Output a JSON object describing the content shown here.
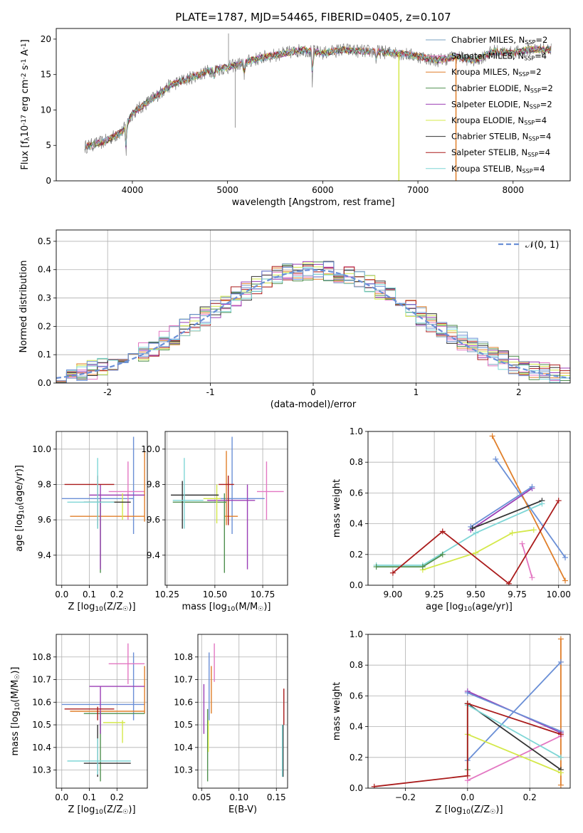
{
  "figure": {
    "title": "PLATE=1787, MJD=54465, FIBERID=0405, z=0.107"
  },
  "models": [
    {
      "label": "Chabrier MILES, N$_{SSP}$=2",
      "base": "Chabrier MILES, N",
      "nssp": "=2",
      "color": "#7aa0c0"
    },
    {
      "label": "Salpeter MILES, N$_{SSP}$=4",
      "base": "Salpeter MILES, N",
      "nssp": "=4",
      "color": "#e377c2"
    },
    {
      "label": "Kroupa MILES, N$_{SSP}$=2",
      "base": "Kroupa MILES, N",
      "nssp": "=2",
      "color": "#e07f2a"
    },
    {
      "label": "Chabrier ELODIE, N$_{SSP}$=2",
      "base": "Chabrier ELODIE, N",
      "nssp": "=2",
      "color": "#4f8f4f"
    },
    {
      "label": "Salpeter ELODIE, N$_{SSP}$=2",
      "base": "Salpeter ELODIE, N",
      "nssp": "=2",
      "color": "#9b3fb5"
    },
    {
      "label": "Kroupa ELODIE, N$_{SSP}$=4",
      "base": "Kroupa ELODIE, N",
      "nssp": "=4",
      "color": "#d4e84a"
    },
    {
      "label": "Chabrier STELIB, N$_{SSP}$=4",
      "base": "Chabrier STELIB, N",
      "nssp": "=4",
      "color": "#333333"
    },
    {
      "label": "Salpeter STELIB, N$_{SSP}$=4",
      "base": "Salpeter STELIB, N",
      "nssp": "=4",
      "color": "#aa1b1b"
    },
    {
      "label": "Kroupa STELIB, N$_{SSP}$=4",
      "base": "Kroupa STELIB, N",
      "nssp": "=4",
      "color": "#7fd6d6"
    }
  ],
  "extra_colors": {
    "blue": "#6a8fd6",
    "cyan": "#7fd6d6"
  },
  "chart_data": [
    {
      "id": "spectrum",
      "type": "line",
      "xlabel": "wavelength [Angstrom, rest frame]",
      "ylabel": "Flux [f$_\\lambda$10$^{-17}$ erg cm$^{-2}$ s$^{-1}$ A$^{-1}$]",
      "xlim": [
        3200,
        8600
      ],
      "ylim": [
        0,
        21.5
      ],
      "xticks": [
        4000,
        5000,
        6000,
        7000,
        8000
      ],
      "yticks": [
        0,
        5,
        10,
        15,
        20
      ],
      "continuum": [
        [
          3500,
          4.8
        ],
        [
          3700,
          5.5
        ],
        [
          3900,
          7.0
        ],
        [
          4000,
          9.5
        ],
        [
          4200,
          11.5
        ],
        [
          4400,
          13.5
        ],
        [
          4600,
          14.5
        ],
        [
          4800,
          15.5
        ],
        [
          5000,
          16.0
        ],
        [
          5200,
          16.8
        ],
        [
          5400,
          17.5
        ],
        [
          5600,
          18.0
        ],
        [
          5800,
          18.5
        ],
        [
          6000,
          18.0
        ],
        [
          6200,
          18.5
        ],
        [
          6400,
          18.3
        ],
        [
          6600,
          18.2
        ],
        [
          6800,
          18.0
        ],
        [
          7000,
          17.6
        ],
        [
          7200,
          17.0
        ],
        [
          7400,
          17.5
        ],
        [
          7600,
          17.0
        ],
        [
          7800,
          18.3
        ],
        [
          8000,
          18.0
        ],
        [
          8200,
          18.6
        ],
        [
          8400,
          18.5
        ]
      ],
      "features": [
        {
          "x": 3933,
          "depth": -5.0
        },
        {
          "x": 4861,
          "depth": -2.0
        },
        {
          "x": 5175,
          "depth": -3.0
        },
        {
          "x": 5892,
          "depth": -6.0
        },
        {
          "x": 6563,
          "depth": -1.8
        },
        {
          "x": 6800,
          "depth": -18.0
        },
        {
          "x": 7400,
          "depth": -18.0
        }
      ],
      "spikes": [
        {
          "x": 5010,
          "top": 20.8
        },
        {
          "x": 5080,
          "top": 7.5
        }
      ]
    },
    {
      "id": "residuals",
      "type": "histogram",
      "xlabel": "(data-model)/error",
      "ylabel": "Normed distribution",
      "xlim": [
        -2.5,
        2.5
      ],
      "ylim": [
        0,
        0.54
      ],
      "xticks": [
        -2,
        -1,
        0,
        1,
        2
      ],
      "yticks": [
        0.0,
        0.1,
        0.2,
        0.3,
        0.4,
        0.5
      ],
      "legend": "$\\mathcal{N}(0,1)$",
      "legend_text": "𝒩(0, 1)",
      "bin_width": 0.1
    },
    {
      "id": "age_vs_Z",
      "type": "scatter",
      "xlabel": "Z [log$_{10}$(Z/Z$_\\odot$)]",
      "ylabel": "age  [log$_{10}$(age/yr)]",
      "xlim": [
        -0.02,
        0.31
      ],
      "ylim": [
        9.23,
        10.1
      ],
      "xticks": [
        0.0,
        0.1,
        0.2
      ],
      "yticks": [
        9.4,
        9.6,
        9.8,
        10.0
      ],
      "points": [
        {
          "color": "#6a8fd6",
          "x": 0.0,
          "xerr": [
            0.0,
            0.26
          ],
          "y": 9.72,
          "yerr": [
            9.72,
            9.72
          ]
        },
        {
          "color": "#6a8fd6",
          "x": 0.26,
          "xerr": [
            0.26,
            0.26
          ],
          "y": 9.75,
          "yerr": [
            9.52,
            10.07
          ]
        },
        {
          "color": "#e377c2",
          "x": 0.24,
          "xerr": [
            0.17,
            0.3
          ],
          "y": 9.76,
          "yerr": [
            9.6,
            9.93
          ]
        },
        {
          "color": "#e07f2a",
          "x": 0.3,
          "xerr": [
            0.03,
            0.3
          ],
          "y": 9.62,
          "yerr": [
            9.59,
            9.99
          ]
        },
        {
          "color": "#4f8f4f",
          "x": 0.14,
          "xerr": [
            0.08,
            0.16
          ],
          "y": 9.7,
          "yerr": [
            9.3,
            9.71
          ]
        },
        {
          "color": "#9b3fb5",
          "x": 0.14,
          "xerr": [
            0.1,
            0.3
          ],
          "y": 9.74,
          "yerr": [
            9.32,
            9.8
          ]
        },
        {
          "color": "#d4e84a",
          "x": 0.22,
          "xerr": [
            0.15,
            0.23
          ],
          "y": 9.7,
          "yerr": [
            9.6,
            9.75
          ]
        },
        {
          "color": "#333333",
          "x": 0.13,
          "xerr": [
            0.08,
            0.25
          ],
          "y": 9.7,
          "yerr": [
            9.55,
            9.85
          ]
        },
        {
          "color": "#aa1b1b",
          "x": 0.13,
          "xerr": [
            0.01,
            0.19
          ],
          "y": 9.8,
          "yerr": [
            9.57,
            9.85
          ]
        },
        {
          "color": "#7fd6d6",
          "x": 0.13,
          "xerr": [
            0.02,
            0.19
          ],
          "y": 9.7,
          "yerr": [
            9.55,
            9.95
          ]
        }
      ]
    },
    {
      "id": "age_vs_mass",
      "type": "scatter",
      "xlabel": "mass [log$_{10}$(M/M$_\\odot$)]",
      "ylabel": "",
      "xlim": [
        10.24,
        10.88
      ],
      "ylim": [
        9.23,
        10.1
      ],
      "xticks": [
        10.25,
        10.5,
        10.75
      ],
      "yticks": [
        9.4,
        9.6,
        9.8,
        10.0
      ],
      "points": [
        {
          "color": "#6a8fd6",
          "x": 10.59,
          "xerr": [
            10.52,
            10.76
          ],
          "y": 9.72,
          "yerr": [
            9.52,
            10.07
          ]
        },
        {
          "color": "#e377c2",
          "x": 10.77,
          "xerr": [
            10.72,
            10.86
          ],
          "y": 9.76,
          "yerr": [
            9.6,
            9.93
          ]
        },
        {
          "color": "#e07f2a",
          "x": 10.56,
          "xerr": [
            10.55,
            10.62
          ],
          "y": 9.62,
          "yerr": [
            9.57,
            9.99
          ]
        },
        {
          "color": "#4f8f4f",
          "x": 10.55,
          "xerr": [
            10.28,
            10.56
          ],
          "y": 9.7,
          "yerr": [
            9.3,
            9.75
          ]
        },
        {
          "color": "#9b3fb5",
          "x": 10.67,
          "xerr": [
            10.46,
            10.71
          ],
          "y": 9.71,
          "yerr": [
            9.32,
            9.8
          ]
        },
        {
          "color": "#d4e84a",
          "x": 10.51,
          "xerr": [
            10.44,
            10.53
          ],
          "y": 9.72,
          "yerr": [
            9.58,
            9.8
          ]
        },
        {
          "color": "#333333",
          "x": 10.33,
          "xerr": [
            10.27,
            10.52
          ],
          "y": 9.74,
          "yerr": [
            9.55,
            9.82
          ]
        },
        {
          "color": "#aa1b1b",
          "x": 10.57,
          "xerr": [
            10.52,
            10.6
          ],
          "y": 9.8,
          "yerr": [
            9.57,
            9.85
          ]
        },
        {
          "color": "#7fd6d6",
          "x": 10.34,
          "xerr": [
            10.28,
            10.44
          ],
          "y": 9.71,
          "yerr": [
            9.55,
            9.95
          ]
        }
      ]
    },
    {
      "id": "weight_vs_age",
      "type": "line",
      "xlabel": "age  [log$_{10}$(age/yr)]",
      "ylabel": "mass weight",
      "xlim": [
        8.85,
        10.07
      ],
      "ylim": [
        0,
        1
      ],
      "xticks": [
        9.0,
        9.25,
        9.5,
        9.75,
        10.0
      ],
      "yticks": [
        0.0,
        0.2,
        0.4,
        0.6,
        0.8,
        1.0
      ],
      "series": [
        {
          "color": "#6a8fd6",
          "x": [
            9.62,
            10.04
          ],
          "y": [
            0.82,
            0.18
          ]
        },
        {
          "color": "#e07f2a",
          "x": [
            9.6,
            10.04
          ],
          "y": [
            0.97,
            0.03
          ]
        },
        {
          "color": "#e377c2",
          "x": [
            9.78,
            9.84
          ],
          "y": [
            0.27,
            0.05
          ]
        },
        {
          "color": "#9b3fb5",
          "x": [
            9.47,
            9.84
          ],
          "y": [
            0.36,
            0.63
          ]
        },
        {
          "color": "#6a8fd6",
          "x": [
            9.47,
            9.84
          ],
          "y": [
            0.38,
            0.64
          ]
        },
        {
          "color": "#333333",
          "x": [
            9.48,
            9.9
          ],
          "y": [
            0.37,
            0.55
          ]
        },
        {
          "color": "#d4e84a",
          "x": [
            9.18,
            9.5,
            9.72,
            9.85
          ],
          "y": [
            0.1,
            0.21,
            0.34,
            0.36
          ]
        },
        {
          "color": "#7fd6d6",
          "x": [
            8.9,
            9.18,
            9.5,
            9.9
          ],
          "y": [
            0.13,
            0.13,
            0.34,
            0.53
          ]
        },
        {
          "color": "#4f8f4f",
          "x": [
            8.9,
            9.18,
            9.3
          ],
          "y": [
            0.12,
            0.12,
            0.2
          ]
        },
        {
          "color": "#aa1b1b",
          "x": [
            9.0,
            9.3,
            9.7,
            10.0
          ],
          "y": [
            0.08,
            0.35,
            0.01,
            0.55
          ]
        }
      ]
    },
    {
      "id": "mass_vs_Z",
      "type": "scatter",
      "xlabel": "Z [log$_{10}$(Z/Z$_\\odot$)]",
      "ylabel": "mass [log$_{10}$(M/M$_\\odot$)]",
      "xlim": [
        -0.02,
        0.31
      ],
      "ylim": [
        10.22,
        10.9
      ],
      "xticks": [
        0.0,
        0.1,
        0.2
      ],
      "yticks": [
        10.3,
        10.4,
        10.5,
        10.6,
        10.7,
        10.8
      ],
      "points": [
        {
          "color": "#6a8fd6",
          "x": 0.26,
          "xerr": [
            0.0,
            0.3
          ],
          "y": 10.59,
          "yerr": [
            10.52,
            10.82
          ]
        },
        {
          "color": "#e377c2",
          "x": 0.24,
          "xerr": [
            0.17,
            0.3
          ],
          "y": 10.77,
          "yerr": [
            10.68,
            10.86
          ]
        },
        {
          "color": "#e07f2a",
          "x": 0.3,
          "xerr": [
            0.03,
            0.3
          ],
          "y": 10.56,
          "yerr": [
            10.55,
            10.76
          ]
        },
        {
          "color": "#4f8f4f",
          "x": 0.14,
          "xerr": [
            0.08,
            0.3
          ],
          "y": 10.55,
          "yerr": [
            10.25,
            10.56
          ]
        },
        {
          "color": "#9b3fb5",
          "x": 0.14,
          "xerr": [
            0.1,
            0.3
          ],
          "y": 10.67,
          "yerr": [
            10.46,
            10.67
          ]
        },
        {
          "color": "#d4e84a",
          "x": 0.22,
          "xerr": [
            0.15,
            0.23
          ],
          "y": 10.51,
          "yerr": [
            10.42,
            10.52
          ]
        },
        {
          "color": "#333333",
          "x": 0.13,
          "xerr": [
            0.08,
            0.25
          ],
          "y": 10.33,
          "yerr": [
            10.27,
            10.5
          ]
        },
        {
          "color": "#aa1b1b",
          "x": 0.13,
          "xerr": [
            0.01,
            0.19
          ],
          "y": 10.57,
          "yerr": [
            10.52,
            10.58
          ]
        },
        {
          "color": "#7fd6d6",
          "x": 0.13,
          "xerr": [
            0.02,
            0.25
          ],
          "y": 10.34,
          "yerr": [
            10.28,
            10.44
          ]
        }
      ]
    },
    {
      "id": "mass_vs_ebv",
      "type": "scatter",
      "xlabel": "E(B-V)",
      "ylabel": "",
      "xlim": [
        0.045,
        0.165
      ],
      "ylim": [
        10.22,
        10.9
      ],
      "xticks": [
        0.05,
        0.1,
        0.15
      ],
      "yticks": [
        10.3,
        10.4,
        10.5,
        10.6,
        10.7,
        10.8
      ],
      "points": [
        {
          "color": "#6a8fd6",
          "x": 0.06,
          "xerr": [
            0.06,
            0.06
          ],
          "y": 10.6,
          "yerr": [
            10.52,
            10.82
          ]
        },
        {
          "color": "#e377c2",
          "x": 0.067,
          "xerr": [
            0.067,
            0.067
          ],
          "y": 10.77,
          "yerr": [
            10.69,
            10.86
          ]
        },
        {
          "color": "#e07f2a",
          "x": 0.063,
          "xerr": [
            0.063,
            0.063
          ],
          "y": 10.6,
          "yerr": [
            10.55,
            10.76
          ]
        },
        {
          "color": "#4f8f4f",
          "x": 0.058,
          "xerr": [
            0.058,
            0.058
          ],
          "y": 10.55,
          "yerr": [
            10.25,
            10.57
          ]
        },
        {
          "color": "#9b3fb5",
          "x": 0.053,
          "xerr": [
            0.053,
            0.053
          ],
          "y": 10.6,
          "yerr": [
            10.46,
            10.68
          ]
        },
        {
          "color": "#d4e84a",
          "x": 0.059,
          "xerr": [
            0.059,
            0.059
          ],
          "y": 10.45,
          "yerr": [
            10.38,
            10.52
          ]
        },
        {
          "color": "#333333",
          "x": 0.159,
          "xerr": [
            0.159,
            0.159
          ],
          "y": 10.33,
          "yerr": [
            10.27,
            10.5
          ]
        },
        {
          "color": "#aa1b1b",
          "x": 0.16,
          "xerr": [
            0.16,
            0.16
          ],
          "y": 10.58,
          "yerr": [
            10.5,
            10.66
          ]
        },
        {
          "color": "#7fd6d6",
          "x": 0.158,
          "xerr": [
            0.158,
            0.158
          ],
          "y": 10.4,
          "yerr": [
            10.27,
            10.5
          ]
        }
      ]
    },
    {
      "id": "weight_vs_Z",
      "type": "line",
      "xlabel": "Z [log$_{10}$(Z/Z$_\\odot$)]",
      "ylabel": "mass weight",
      "xlim": [
        -0.32,
        0.33
      ],
      "ylim": [
        0,
        1
      ],
      "xticks": [
        -0.2,
        0.0,
        0.2
      ],
      "yticks": [
        0.0,
        0.2,
        0.4,
        0.6,
        0.8,
        1.0
      ],
      "series": [
        {
          "color": "#e07f2a",
          "x": [
            0.3,
            0.3
          ],
          "y": [
            0.97,
            0.02
          ]
        },
        {
          "color": "#6a8fd6",
          "x": [
            0.0,
            0.3
          ],
          "y": [
            0.18,
            0.82
          ]
        },
        {
          "color": "#e377c2",
          "x": [
            0.0,
            0.3
          ],
          "y": [
            0.05,
            0.34
          ]
        },
        {
          "color": "#9b3fb5",
          "x": [
            0.0,
            0.3
          ],
          "y": [
            0.63,
            0.36
          ]
        },
        {
          "color": "#6a8fd6",
          "x": [
            0.0,
            0.3
          ],
          "y": [
            0.62,
            0.37
          ]
        },
        {
          "color": "#333333",
          "x": [
            0.0,
            0.3
          ],
          "y": [
            0.55,
            0.12
          ]
        },
        {
          "color": "#d4e84a",
          "x": [
            0.0,
            0.3
          ],
          "y": [
            0.35,
            0.1
          ]
        },
        {
          "color": "#7fd6d6",
          "x": [
            0.0,
            0.3
          ],
          "y": [
            0.54,
            0.2
          ]
        },
        {
          "color": "#4f8f4f",
          "x": [
            0.0,
            0.0
          ],
          "y": [
            0.12,
            0.55
          ]
        },
        {
          "color": "#aa1b1b",
          "x": [
            -0.3,
            0.0,
            0.0,
            0.3
          ],
          "y": [
            0.01,
            0.08,
            0.55,
            0.35
          ]
        }
      ]
    }
  ]
}
